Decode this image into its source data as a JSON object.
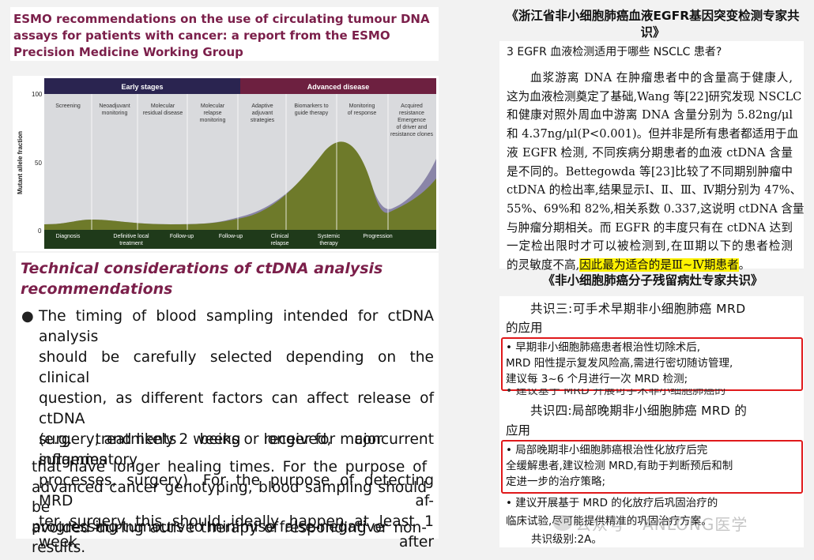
{
  "left": {
    "title": "ESMO recommendations on the use of circulating tumour DNA assays for patients with cancer: a report from the ESMO Precision Medicine Working Group",
    "figure": {
      "stage_early": "Early stages",
      "stage_advanced": "Advanced disease",
      "y_axis_label": "Mutant allele fraction",
      "y_ticks": [
        "100",
        "50",
        "0"
      ],
      "top_labels": [
        [
          "Screening"
        ],
        [
          "Neoadjuvant",
          "monitoring"
        ],
        [
          "Molecular",
          "residual disease"
        ],
        [
          "Molecular",
          "relapse",
          "monitoring"
        ],
        [
          "Adaptive",
          "adjuvant",
          "strategies"
        ],
        [
          "Biomarkers to",
          "guide therapy"
        ],
        [
          "Monitoring",
          "of response"
        ],
        [
          "Acquired",
          "resistance",
          "Emergence",
          "of driver and",
          "resistance clones"
        ]
      ],
      "bottom_labels": [
        [
          "Diagnosis"
        ],
        [
          "Definitive local",
          "treatment"
        ],
        [
          "Follow-up"
        ],
        [
          "Follow-up"
        ],
        [
          "Clinical",
          "relapse"
        ],
        [
          "Systemic",
          "therapy"
        ],
        [
          "Progression"
        ]
      ],
      "colors": {
        "early_bar": "#2a2450",
        "advanced_bar": "#6d2040",
        "green_fill": "#6e7a2a",
        "lilac_fill": "#8a85a8",
        "bottom_bar": "#1f3a1a"
      }
    },
    "tech_heading": "Technical considerations of ctDNA analysis recommendations",
    "bullet_lines": [
      "The timing of blood sampling intended for ctDNA analysis",
      "should be carefully selected depending on the clinical",
      "question, as different factors can affect release of ctDNA",
      "(e.g. treatments being received, concurrent inflammatory",
      "processes, surgery). For the purpose of detecting MRD af-",
      "ter surgery this should ideally happen at least 1 week after"
    ],
    "bullet_last": "surgery, and likely 2 weeks or longer for major surgeries",
    "para2_lines": [
      "that have longer healing times. For the purpose of",
      "advanced cancer genotyping, blood sampling should be",
      "avoided during active therapy of responding or non-"
    ],
    "para2_last": "progressing tumours to minimise false-negative results."
  },
  "right": {
    "title1": "《浙江省非小细胞肺癌血液EGFR基因突变检测专家共识》",
    "section": "3   EGFR 血液检测适用于哪些 NSCLC 患者?",
    "body_lines": [
      "血浆游离 DNA 在肿瘤患者中的含量高于健康人,",
      "这为血液检测奠定了基础,Wang 等[22]研究发现 NSCLC",
      "和健康对照外周血中游离 DNA 含量分别为 5.82ng/μl",
      "和 4.37ng/μl(P<0.001)。但并非是所有患者都适用于血",
      "液 EGFR 检测, 不同疾病分期患者的血液 ctDNA 含量",
      "是不同的。Bettegowda 等[23]比较了不同期别肿瘤中",
      "ctDNA 的检出率,结果显示Ⅰ、Ⅱ、Ⅲ、Ⅳ期分别为 47%、",
      "55%、69%和 82%,相关系数 0.337,这说明 ctDNA 含量",
      "与肿瘤分期相关。而 EGFR 的丰度只有在 ctDNA 达到",
      "一定检出限时才可以被检测到,在Ⅲ期以下的患者检测"
    ],
    "body_last_plain": "的灵敏度不高,",
    "body_last_highlight": "因此最为适合的是Ⅲ~Ⅳ期患者",
    "body_last_end": "。",
    "title2": "《非小细胞肺癌分子残留病灶专家共识》",
    "consensus3": "共识三:可手术早期非小细胞肺癌 MRD",
    "consensus3b": "的应用",
    "box1_lines": [
      "  • 早期非小细胞肺癌患者根治性切除术后,",
      "MRD 阳性提示复发风险高,需进行密切随访管理,",
      "建议每 3~6 个月进行一次 MRD 检测;"
    ],
    "cut_line": "  • 建议基于 MRD 开展可手术非小细胞肺癌的",
    "consensus4": "共识四:局部晚期非小细胞肺癌 MRD 的",
    "consensus4b": "应用",
    "box2_lines": [
      "  • 局部晚期非小细胞肺癌根治性化放疗后完",
      "全缓解患者,建议检测 MRD,有助于判断预后和制",
      "定进一步的治疗策略;"
    ],
    "bullet3": "  • 建议开展基于 MRD 的化放疗后巩固治疗的",
    "bullet3b": "临床试验,尽可能提供精准的巩固治疗方案。",
    "level": "共识级别:2A。",
    "watermark": "公众号 · ANLONG医学"
  }
}
